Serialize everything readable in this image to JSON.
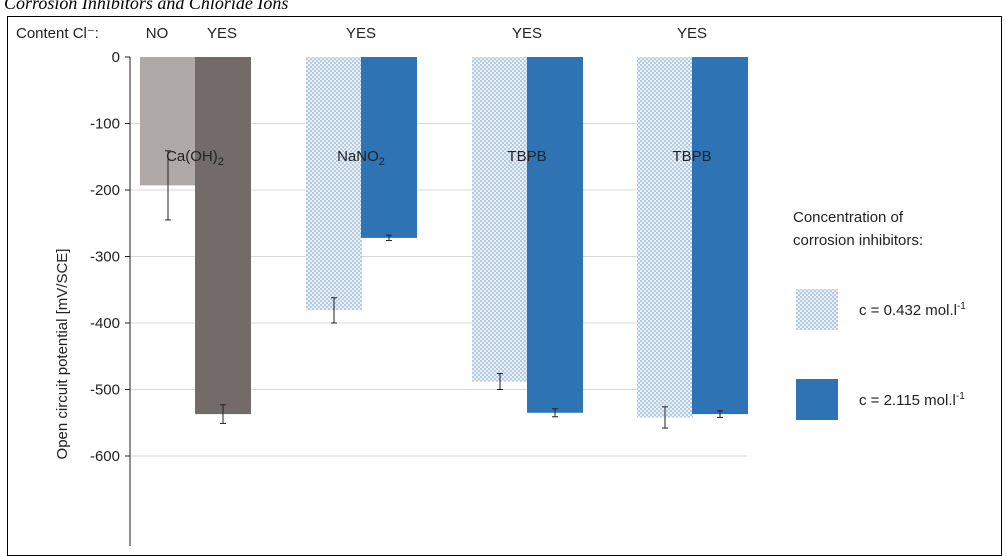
{
  "page": {
    "title": "Corrosion Inhibitors and Chloride Ions"
  },
  "chart_data": {
    "type": "bar",
    "title": "Corrosion Inhibitors and Chloride Ions",
    "ylabel": "Open circuit potential [mV/SCE]",
    "ylim": [
      -600,
      0
    ],
    "yticks": [
      0,
      -100,
      -200,
      -300,
      -400,
      -500,
      -600
    ],
    "grid": true,
    "chloride_header": "Content Cl⁻:",
    "bars": [
      {
        "group": "Ca(OH)₂",
        "chloride": "NO",
        "concentration": "c = 0.432 mol.l⁻¹",
        "color": "#aea8a6",
        "fill": "solid",
        "value": -193,
        "error": 52
      },
      {
        "group": "Ca(OH)₂",
        "chloride": "YES",
        "concentration": "c = 2.115 mol.l⁻¹",
        "color": "#726b69",
        "fill": "solid",
        "value": -537,
        "error": 14
      },
      {
        "group": "NaNO₂",
        "chloride": "YES",
        "concentration": "c = 0.432 mol.l⁻¹",
        "color": "#9ab7d8",
        "fill": "dotted",
        "value": -381,
        "error": 19
      },
      {
        "group": "NaNO₂",
        "chloride": "",
        "concentration": "c = 2.115 mol.l⁻¹",
        "color": "#2e74b5",
        "fill": "solid",
        "value": -272,
        "error": 4
      },
      {
        "group": "TBPB",
        "chloride": "YES",
        "concentration": "c = 0.432 mol.l⁻¹",
        "color": "#9ab7d8",
        "fill": "dotted",
        "value": -488,
        "error": 12
      },
      {
        "group": "TBPB",
        "chloride": "",
        "concentration": "c = 2.115 mol.l⁻¹",
        "color": "#2e74b5",
        "fill": "solid",
        "value": -535,
        "error": 6
      },
      {
        "group": "TBPB",
        "chloride": "YES",
        "concentration": "c = 0.432 mol.l⁻¹",
        "color": "#9ab7d8",
        "fill": "dotted",
        "value": -542,
        "error": 16
      },
      {
        "group": "TBPB",
        "chloride": "",
        "concentration": "c = 2.115 mol.l⁻¹",
        "color": "#2e74b5",
        "fill": "solid",
        "value": -537,
        "error": 5
      }
    ],
    "group_labels": [
      {
        "main": "Ca(OH)",
        "sub": "2"
      },
      {
        "main": "NaNO",
        "sub": "2"
      },
      {
        "main": "TBPB",
        "sub": ""
      },
      {
        "main": "TBPB",
        "sub": ""
      }
    ],
    "legend": {
      "title_lines": [
        "Concentration of",
        "corrosion inhibitors:"
      ],
      "items": [
        {
          "label": "c = 0.432 mol.l",
          "sup": "-1",
          "color": "#9ab7d8",
          "fill": "dotted"
        },
        {
          "label": "c = 2.115 mol.l",
          "sup": "-1",
          "color": "#2e74b5",
          "fill": "solid"
        }
      ],
      "position": "right"
    }
  }
}
